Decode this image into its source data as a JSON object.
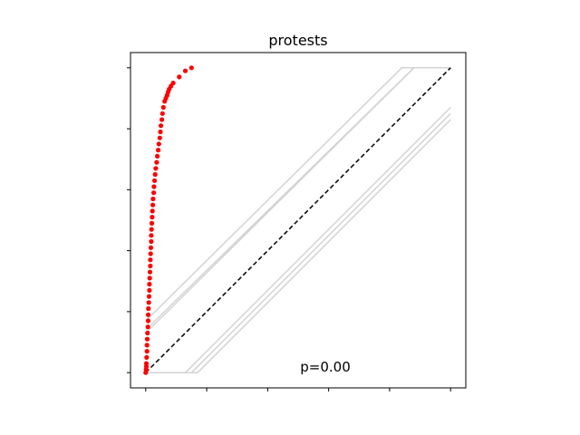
{
  "chart_data": {
    "type": "scatter",
    "title": "protests",
    "xlabel": "",
    "ylabel": "",
    "xlim": [
      -0.05,
      1.05
    ],
    "ylim": [
      -0.05,
      1.05
    ],
    "xticks": [
      0,
      0.2,
      0.4,
      0.6,
      0.8,
      1.0
    ],
    "yticks": [
      0,
      0.2,
      0.4,
      0.6,
      0.8,
      1.0
    ],
    "show_tick_labels": false,
    "grid": false,
    "annotation": "p=0.00",
    "colors": {
      "points": "#ff0000",
      "reference": "#000000",
      "bands": "#d3d3d3"
    },
    "reference_line": {
      "x": [
        0,
        1
      ],
      "y": [
        0,
        1
      ],
      "style": "dashed"
    },
    "bands": [
      {
        "x": [
          0,
          0.84,
          1.0
        ],
        "y": [
          0.17,
          1.0,
          1.0
        ]
      },
      {
        "x": [
          0,
          0.88,
          1.0
        ],
        "y": [
          0.14,
          1.0,
          1.0
        ]
      },
      {
        "x": [
          0,
          0.88,
          1.0
        ],
        "y": [
          0.13,
          1.0,
          1.0
        ]
      },
      {
        "x": [
          0,
          0.13,
          1.0
        ],
        "y": [
          0,
          0,
          0.87
        ]
      },
      {
        "x": [
          0,
          0.15,
          1.0
        ],
        "y": [
          0,
          0,
          0.85
        ]
      },
      {
        "x": [
          0,
          0.17,
          1.0
        ],
        "y": [
          0,
          0,
          0.83
        ]
      }
    ],
    "points": {
      "x": [
        0.0,
        0.001,
        0.002,
        0.002,
        0.003,
        0.004,
        0.004,
        0.005,
        0.006,
        0.007,
        0.008,
        0.008,
        0.009,
        0.01,
        0.011,
        0.012,
        0.012,
        0.013,
        0.014,
        0.015,
        0.015,
        0.016,
        0.017,
        0.018,
        0.018,
        0.019,
        0.02,
        0.021,
        0.022,
        0.023,
        0.024,
        0.026,
        0.027,
        0.029,
        0.031,
        0.033,
        0.036,
        0.038,
        0.041,
        0.043,
        0.046,
        0.048,
        0.05,
        0.053,
        0.055,
        0.058,
        0.062,
        0.066,
        0.07,
        0.073,
        0.077,
        0.083,
        0.09,
        0.11,
        0.13,
        0.15
      ],
      "y": [
        0.0,
        0.01,
        0.02,
        0.03,
        0.05,
        0.07,
        0.09,
        0.11,
        0.13,
        0.15,
        0.17,
        0.19,
        0.21,
        0.23,
        0.25,
        0.27,
        0.29,
        0.31,
        0.33,
        0.35,
        0.37,
        0.39,
        0.41,
        0.43,
        0.45,
        0.47,
        0.49,
        0.51,
        0.53,
        0.55,
        0.57,
        0.59,
        0.61,
        0.63,
        0.65,
        0.67,
        0.69,
        0.71,
        0.73,
        0.75,
        0.77,
        0.79,
        0.81,
        0.83,
        0.85,
        0.87,
        0.89,
        0.9,
        0.91,
        0.92,
        0.93,
        0.94,
        0.95,
        0.97,
        0.99,
        1.0
      ]
    }
  }
}
